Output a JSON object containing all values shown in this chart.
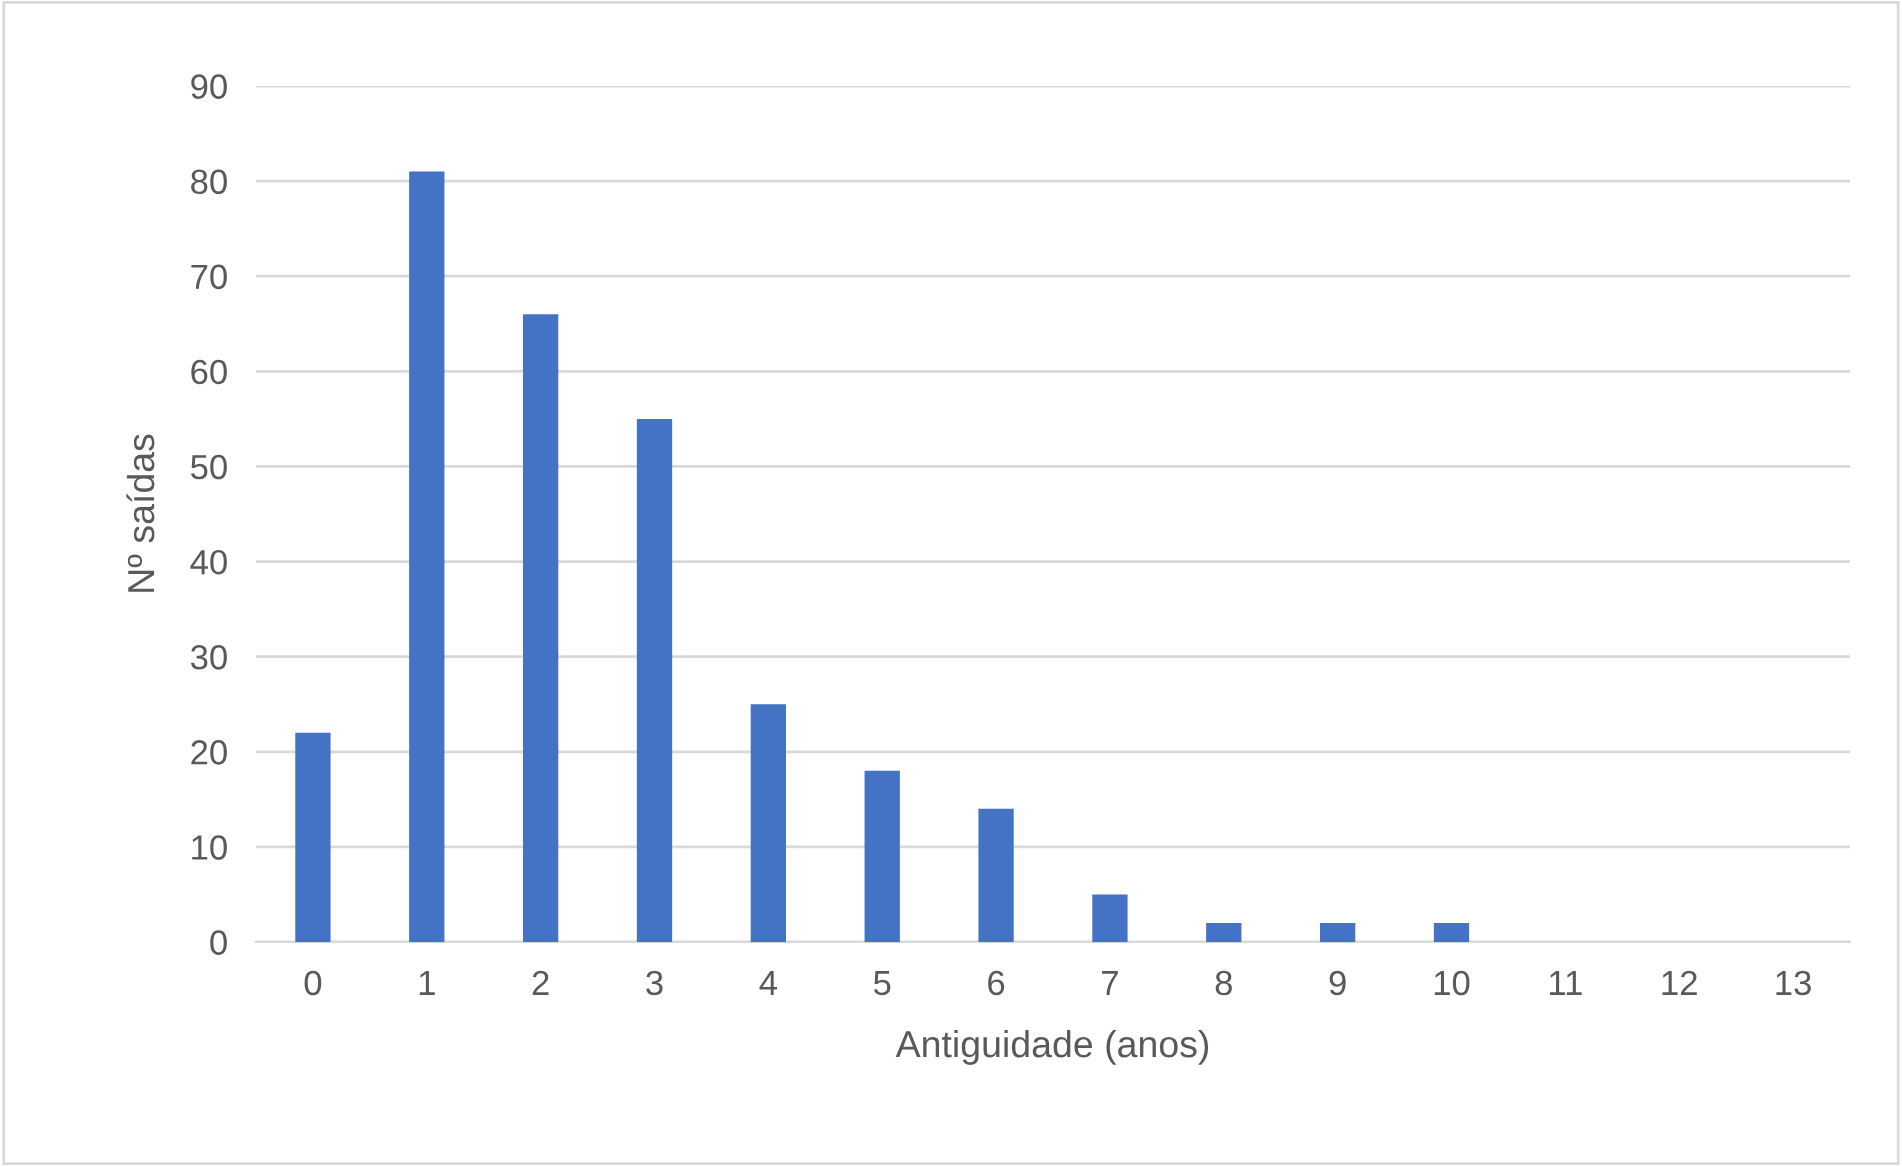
{
  "chart_data": {
    "type": "bar",
    "xlabel": "Antiguidade (anos)",
    "ylabel": "Nº saídas",
    "categories": [
      "0",
      "1",
      "2",
      "3",
      "4",
      "5",
      "6",
      "7",
      "8",
      "9",
      "10",
      "11",
      "12",
      "13"
    ],
    "values": [
      22,
      81,
      66,
      55,
      25,
      18,
      14,
      5,
      2,
      2,
      2,
      0,
      0,
      0
    ],
    "color": "#4472c4",
    "ylim": [
      0,
      90
    ],
    "yticks": [
      0,
      10,
      20,
      30,
      40,
      50,
      60,
      70,
      80,
      90
    ],
    "grid": "y"
  }
}
